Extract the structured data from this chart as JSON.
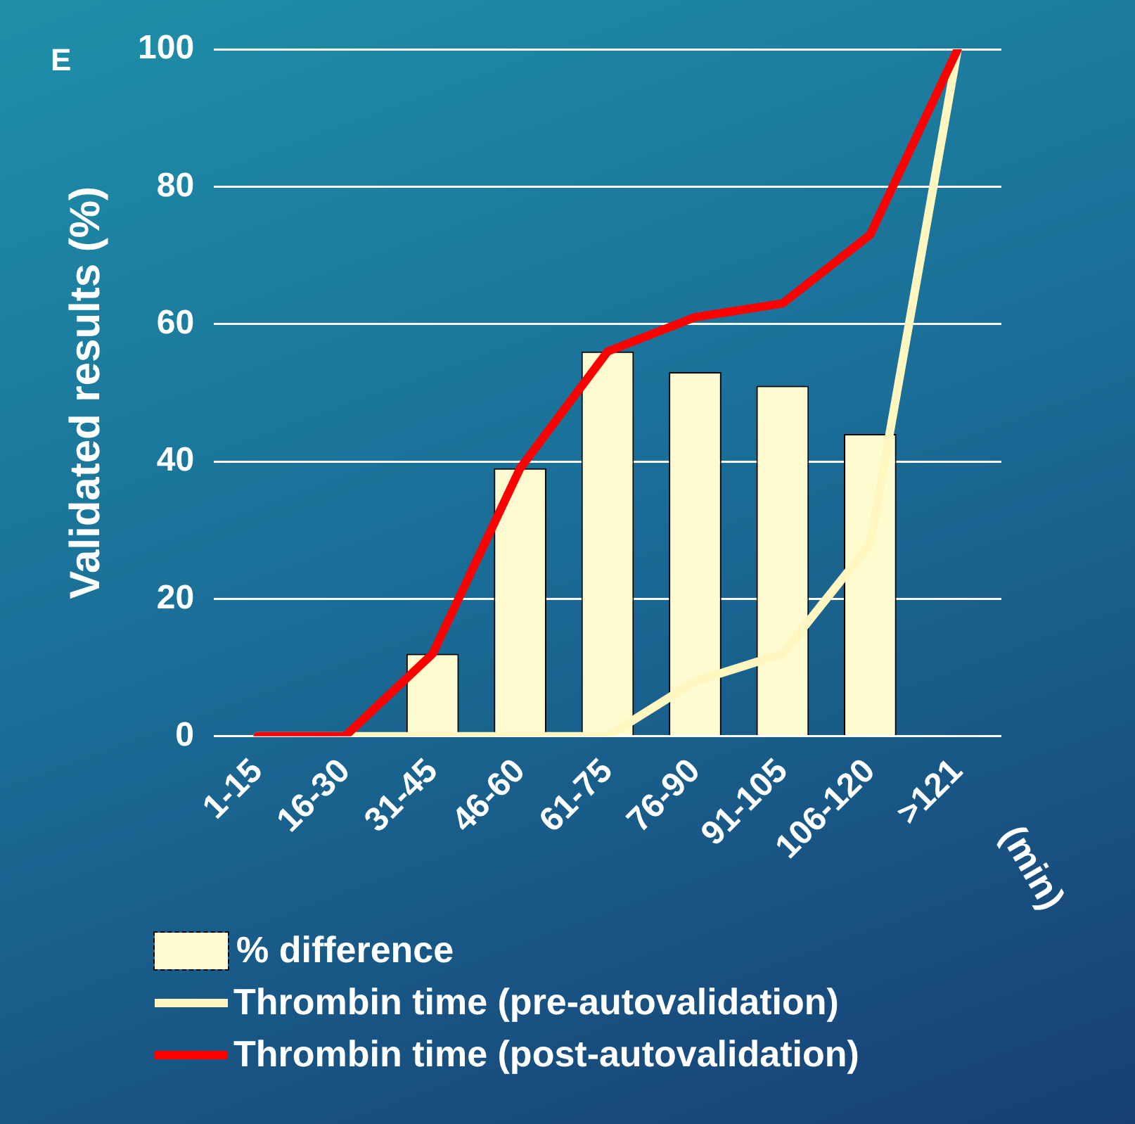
{
  "chart_data": {
    "type": "bar",
    "ylabel": "Validated results (%)",
    "xlabel": "(min)",
    "annotations": [
      "E"
    ],
    "categories": [
      "1-15",
      "16-30",
      "31-45",
      "46-60",
      "61-75",
      "76-90",
      "91-105",
      "106-120",
      ">121"
    ],
    "series": [
      {
        "name": "% difference",
        "type": "bar",
        "color": "#fffbd0",
        "values": [
          null,
          null,
          12,
          39,
          56,
          53,
          51,
          44,
          null
        ]
      },
      {
        "name": "Thrombin time (pre-autovalidation)",
        "type": "line",
        "color": "#fff6c0",
        "values": [
          0,
          0,
          0,
          0,
          0,
          8,
          12,
          28,
          100
        ]
      },
      {
        "name": "Thrombin time (post-autovalidation)",
        "type": "line",
        "color": "#ff0000",
        "values": [
          0,
          0,
          12,
          39,
          56,
          61,
          63,
          73,
          100
        ]
      }
    ],
    "ylim": [
      0,
      100
    ],
    "yticks": [
      0,
      20,
      40,
      60,
      80,
      100
    ],
    "grid": "y",
    "legend": "bottom",
    "marker": "none",
    "line_style": "solid"
  }
}
